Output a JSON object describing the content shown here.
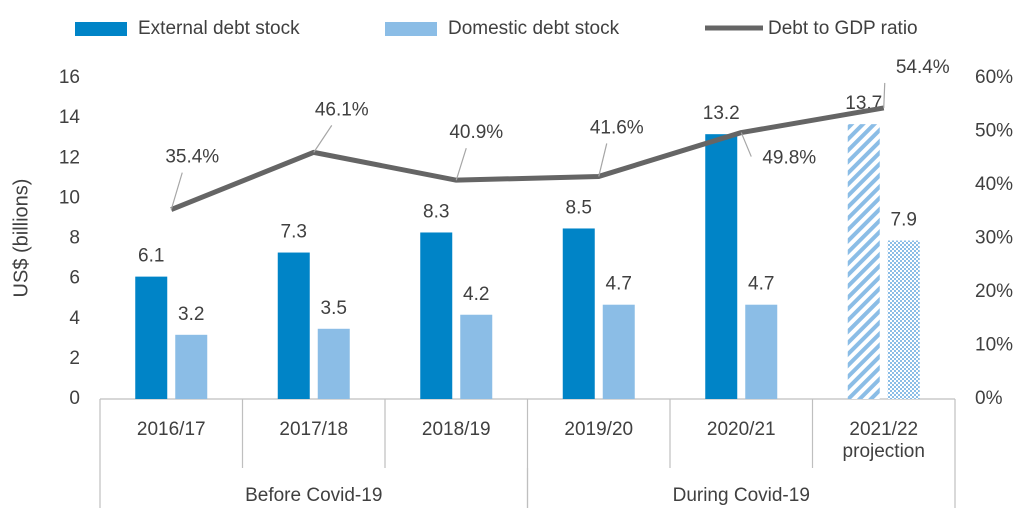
{
  "chart_data": {
    "type": "bar",
    "y_axis_label": "US$ (billions)",
    "categories": [
      "2016/17",
      "2017/18",
      "2018/19",
      "2019/20",
      "2020/21",
      "2021/22\nprojection"
    ],
    "groups": [
      {
        "label": "Before Covid-19",
        "span": 3
      },
      {
        "label": "During Covid-19",
        "span": 3
      }
    ],
    "series": [
      {
        "name": "External debt stock",
        "type": "bar",
        "color": "#0084c7",
        "values": [
          6.1,
          7.3,
          8.3,
          8.5,
          13.2,
          13.7
        ],
        "hatch_last": true
      },
      {
        "name": "Domestic debt stock",
        "type": "bar",
        "color": "#8bbde6",
        "values": [
          3.2,
          3.5,
          4.2,
          4.7,
          4.7,
          7.9
        ],
        "hatch_last": true
      },
      {
        "name": "Debt to GDP ratio",
        "type": "line",
        "axis": "y2",
        "color": "#656565",
        "values": [
          35.4,
          46.1,
          40.9,
          41.6,
          49.8,
          54.4
        ],
        "value_labels": [
          "35.4%",
          "46.1%",
          "40.9%",
          "41.6%",
          "49.8%",
          "54.4%"
        ]
      }
    ],
    "ylim": [
      0,
      16
    ],
    "yticks": [
      0,
      2,
      4,
      6,
      8,
      10,
      12,
      14,
      16
    ],
    "y2lim": [
      0,
      60
    ],
    "y2ticks": [
      {
        "value": 0,
        "label": "0%"
      },
      {
        "value": 10,
        "label": "10%"
      },
      {
        "value": 20,
        "label": "20%"
      },
      {
        "value": 30,
        "label": "30%"
      },
      {
        "value": 40,
        "label": "40%"
      },
      {
        "value": 50,
        "label": "50%"
      },
      {
        "value": 60,
        "label": "60%"
      }
    ],
    "legend": "top"
  }
}
